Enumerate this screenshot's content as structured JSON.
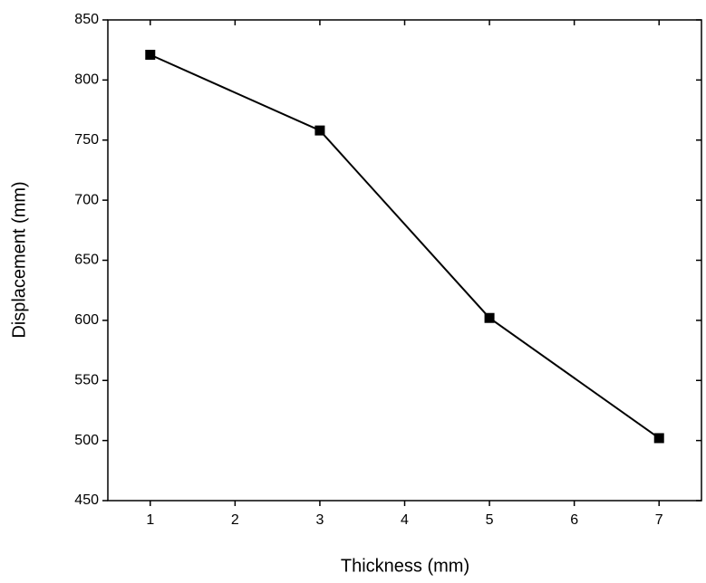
{
  "chart_data": {
    "type": "line",
    "x": [
      1,
      3,
      5,
      7
    ],
    "series": [
      {
        "name": "Displacement",
        "color": "#000000",
        "values": [
          821,
          758,
          602,
          502
        ]
      }
    ],
    "xlabel": "Thickness (mm)",
    "ylabel": "Displacement (mm)",
    "xlim": [
      0.5,
      7.5
    ],
    "xticks": [
      1,
      2,
      3,
      4,
      5,
      6,
      7
    ],
    "ylim": [
      450,
      850
    ],
    "yticks": [
      450,
      500,
      550,
      600,
      650,
      700,
      750,
      800,
      850
    ],
    "grid": false
  }
}
